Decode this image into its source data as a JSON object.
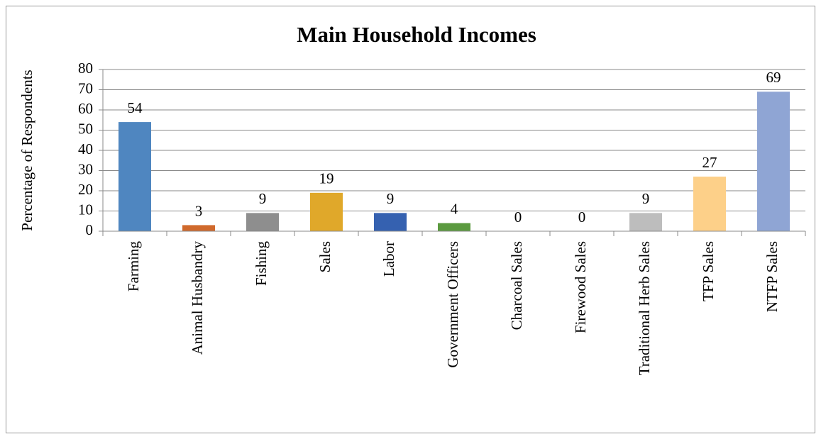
{
  "chart_data": {
    "type": "bar",
    "title": "Main Household Incomes",
    "y_label": "Percentage of Respondents",
    "categories": [
      "Farming",
      "Animal Husbandry",
      "Fishing",
      "Sales",
      "Labor",
      "Government Officers",
      "Charcoal Sales",
      "Firewood Sales",
      "Traditional Herb Sales",
      "TFP Sales",
      "NTFP Sales"
    ],
    "values": [
      54,
      3,
      9,
      19,
      9,
      4,
      0,
      0,
      9,
      27,
      69
    ],
    "colors": [
      "#4f86c0",
      "#d0692c",
      "#8e8e8e",
      "#e0a82a",
      "#3561b0",
      "#5b9a3f",
      "#2d4a8a",
      "#9b4d1f",
      "#bdbdbd",
      "#fdd089",
      "#8fa5d4"
    ],
    "ylim": [
      0,
      80
    ],
    "yticks": [
      0,
      10,
      20,
      30,
      40,
      50,
      60,
      70,
      80
    ],
    "grid": true
  }
}
